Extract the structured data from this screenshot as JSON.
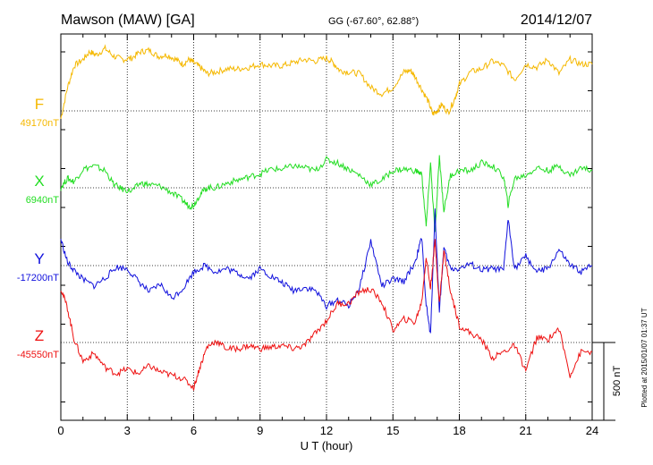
{
  "header": {
    "station": "Mawson (MAW)  [GA]",
    "coords": "GG (-67.60°,  62.88°)",
    "date": "2014/12/07"
  },
  "footer": {
    "plotted_note": "Plotted at 2015/01/07 01:37 UT",
    "scale_label": "500 nT"
  },
  "chart_data": {
    "type": "line",
    "title": "Mawson (MAW)  [GA]",
    "xlabel": "U T (hour)",
    "ylabel": "",
    "xlim": [
      0,
      24
    ],
    "xticks": [
      "0",
      "3",
      "6",
      "9",
      "12",
      "15",
      "18",
      "21",
      "24"
    ],
    "grid": true,
    "scale_bar_nT": 500,
    "series": [
      {
        "name": "F",
        "baseline_label": "49170nT",
        "color": "#f5b800",
        "x": [
          0,
          0.3,
          0.6,
          1,
          1.3,
          1.6,
          2,
          2.4,
          2.8,
          3.2,
          3.6,
          4,
          4.4,
          4.8,
          5.2,
          5.5,
          5.8,
          6,
          6.3,
          6.6,
          7,
          7.5,
          8,
          8.5,
          9,
          9.5,
          10,
          10.5,
          11,
          11.5,
          12,
          12.3,
          12.6,
          13,
          13.5,
          14,
          14.5,
          15,
          15.5,
          15.8,
          16,
          16.3,
          16.6,
          16.8,
          17,
          17.2,
          17.5,
          17.8,
          18,
          18.5,
          19,
          19.5,
          20,
          20.5,
          21,
          21.5,
          22,
          22.5,
          23,
          23.5,
          24
        ],
        "values": [
          -50,
          150,
          290,
          330,
          380,
          360,
          400,
          350,
          330,
          340,
          380,
          390,
          350,
          360,
          330,
          300,
          330,
          310,
          280,
          240,
          250,
          270,
          270,
          280,
          300,
          290,
          290,
          310,
          330,
          320,
          340,
          310,
          260,
          250,
          240,
          150,
          110,
          150,
          250,
          260,
          220,
          140,
          60,
          -20,
          0,
          40,
          -10,
          80,
          170,
          250,
          270,
          320,
          290,
          200,
          300,
          280,
          330,
          240,
          330,
          300,
          300
        ]
      },
      {
        "name": "X",
        "baseline_label": "6940nT",
        "color": "#22dd22",
        "x": [
          0,
          0.3,
          0.6,
          1,
          1.5,
          2,
          2.4,
          2.8,
          3.2,
          3.6,
          4,
          4.5,
          5,
          5.5,
          5.8,
          6,
          6.3,
          6.6,
          7,
          7.5,
          8,
          8.5,
          9,
          9.5,
          10,
          10.5,
          11,
          11.5,
          12,
          12.5,
          13,
          13.5,
          14,
          14.5,
          15,
          15.5,
          16,
          16.3,
          16.5,
          16.7,
          16.9,
          17.1,
          17.3,
          17.6,
          18,
          18.5,
          19,
          19.5,
          20,
          20.2,
          20.5,
          21,
          21.5,
          22,
          22.5,
          23,
          23.5,
          24
        ],
        "values": [
          0,
          60,
          40,
          120,
          140,
          110,
          20,
          -10,
          -20,
          30,
          20,
          10,
          -30,
          -80,
          -120,
          -110,
          -40,
          0,
          0,
          30,
          50,
          70,
          90,
          120,
          120,
          140,
          130,
          110,
          180,
          160,
          120,
          80,
          20,
          50,
          110,
          120,
          110,
          90,
          -250,
          160,
          -300,
          200,
          -150,
          80,
          110,
          110,
          160,
          140,
          70,
          -110,
          60,
          80,
          130,
          110,
          140,
          80,
          130,
          110
        ]
      },
      {
        "name": "Y",
        "baseline_label": "-17200nT",
        "color": "#1010dd",
        "x": [
          0,
          0.3,
          0.6,
          1,
          1.5,
          2,
          2.5,
          3,
          3.5,
          4,
          4.5,
          5,
          5.5,
          6,
          6.5,
          7,
          7.5,
          8,
          8.5,
          9,
          9.5,
          10,
          10.5,
          11,
          11.5,
          12,
          12.5,
          13,
          13.5,
          14,
          14.5,
          15,
          15.5,
          16,
          16.3,
          16.5,
          16.7,
          16.9,
          17.1,
          17.3,
          17.6,
          18,
          18.5,
          19,
          19.5,
          20,
          20.2,
          20.5,
          21,
          21.5,
          22,
          22.5,
          23,
          23.5,
          24
        ],
        "values": [
          170,
          20,
          -30,
          -90,
          -130,
          -80,
          -10,
          -20,
          -100,
          -170,
          -120,
          -210,
          -150,
          -40,
          0,
          -40,
          -20,
          -50,
          -80,
          -20,
          -70,
          -110,
          -160,
          -140,
          -160,
          -260,
          -220,
          -260,
          -140,
          160,
          -130,
          -90,
          -100,
          20,
          180,
          -250,
          -450,
          350,
          -290,
          110,
          -20,
          -20,
          10,
          -30,
          -20,
          -30,
          300,
          -20,
          60,
          -40,
          -20,
          100,
          0,
          -40,
          0
        ]
      },
      {
        "name": "Z",
        "baseline_label": "-45550nT",
        "color": "#ee1010",
        "x": [
          0,
          0.3,
          0.6,
          1,
          1.5,
          2,
          2.5,
          3,
          3.5,
          4,
          4.5,
          5,
          5.5,
          6,
          6.3,
          6.6,
          7,
          7.5,
          8,
          8.5,
          9,
          9.5,
          10,
          10.5,
          11,
          11.5,
          12,
          12.5,
          13,
          13.5,
          14,
          14.5,
          15,
          15.5,
          16,
          16.3,
          16.5,
          16.7,
          16.9,
          17.1,
          17.3,
          17.6,
          18,
          18.5,
          19,
          19.5,
          20,
          20.5,
          21,
          21.5,
          22,
          22.5,
          23,
          23.5,
          24
        ],
        "values": [
          350,
          220,
          20,
          -120,
          -70,
          -160,
          -200,
          -170,
          -200,
          -150,
          -190,
          -210,
          -230,
          -290,
          -150,
          -30,
          10,
          -40,
          -40,
          -20,
          -40,
          -30,
          -20,
          -40,
          -20,
          60,
          140,
          250,
          250,
          330,
          340,
          260,
          80,
          150,
          130,
          260,
          550,
          350,
          650,
          250,
          590,
          330,
          110,
          60,
          20,
          -100,
          -60,
          -20,
          -180,
          30,
          20,
          90,
          -210,
          -60,
          -60
        ]
      }
    ]
  }
}
